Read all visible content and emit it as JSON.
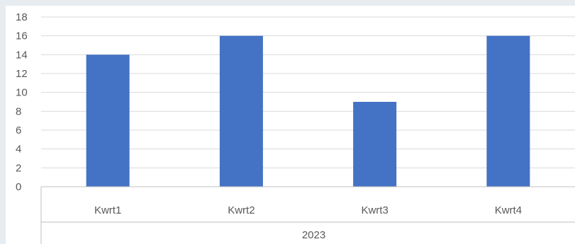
{
  "chart_data": {
    "type": "bar",
    "categories": [
      "Kwrt1",
      "Kwrt2",
      "Kwrt3",
      "Kwrt4"
    ],
    "group_label": "2023",
    "series": [
      {
        "values": [
          14,
          16,
          9,
          16
        ]
      }
    ],
    "y_ticks": [
      "0",
      "2",
      "4",
      "6",
      "8",
      "10",
      "12",
      "14",
      "16",
      "18"
    ],
    "ylim": [
      0,
      18
    ],
    "grid": true,
    "bar_color": "#4472c4",
    "grid_color": "#d9d9d9",
    "axis_color": "#bfbfbf"
  }
}
